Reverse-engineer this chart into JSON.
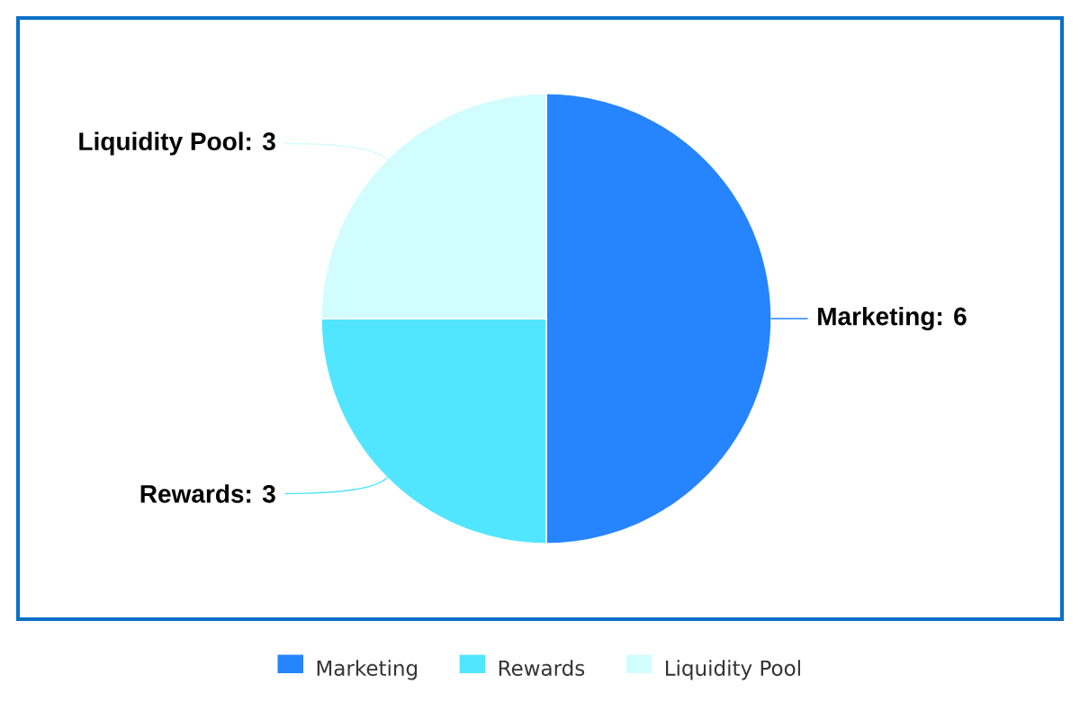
{
  "chart_data": {
    "type": "pie",
    "categories": [
      "Marketing",
      "Rewards",
      "Liquidity Pool"
    ],
    "values": [
      6,
      3,
      3
    ],
    "colors": [
      "#2684ff",
      "#52e5ff",
      "#d2fdff"
    ],
    "value_labels": [
      "Marketing: 6",
      "Rewards: 3",
      "Liquidity Pool: 3"
    ],
    "legend": "bottom"
  }
}
